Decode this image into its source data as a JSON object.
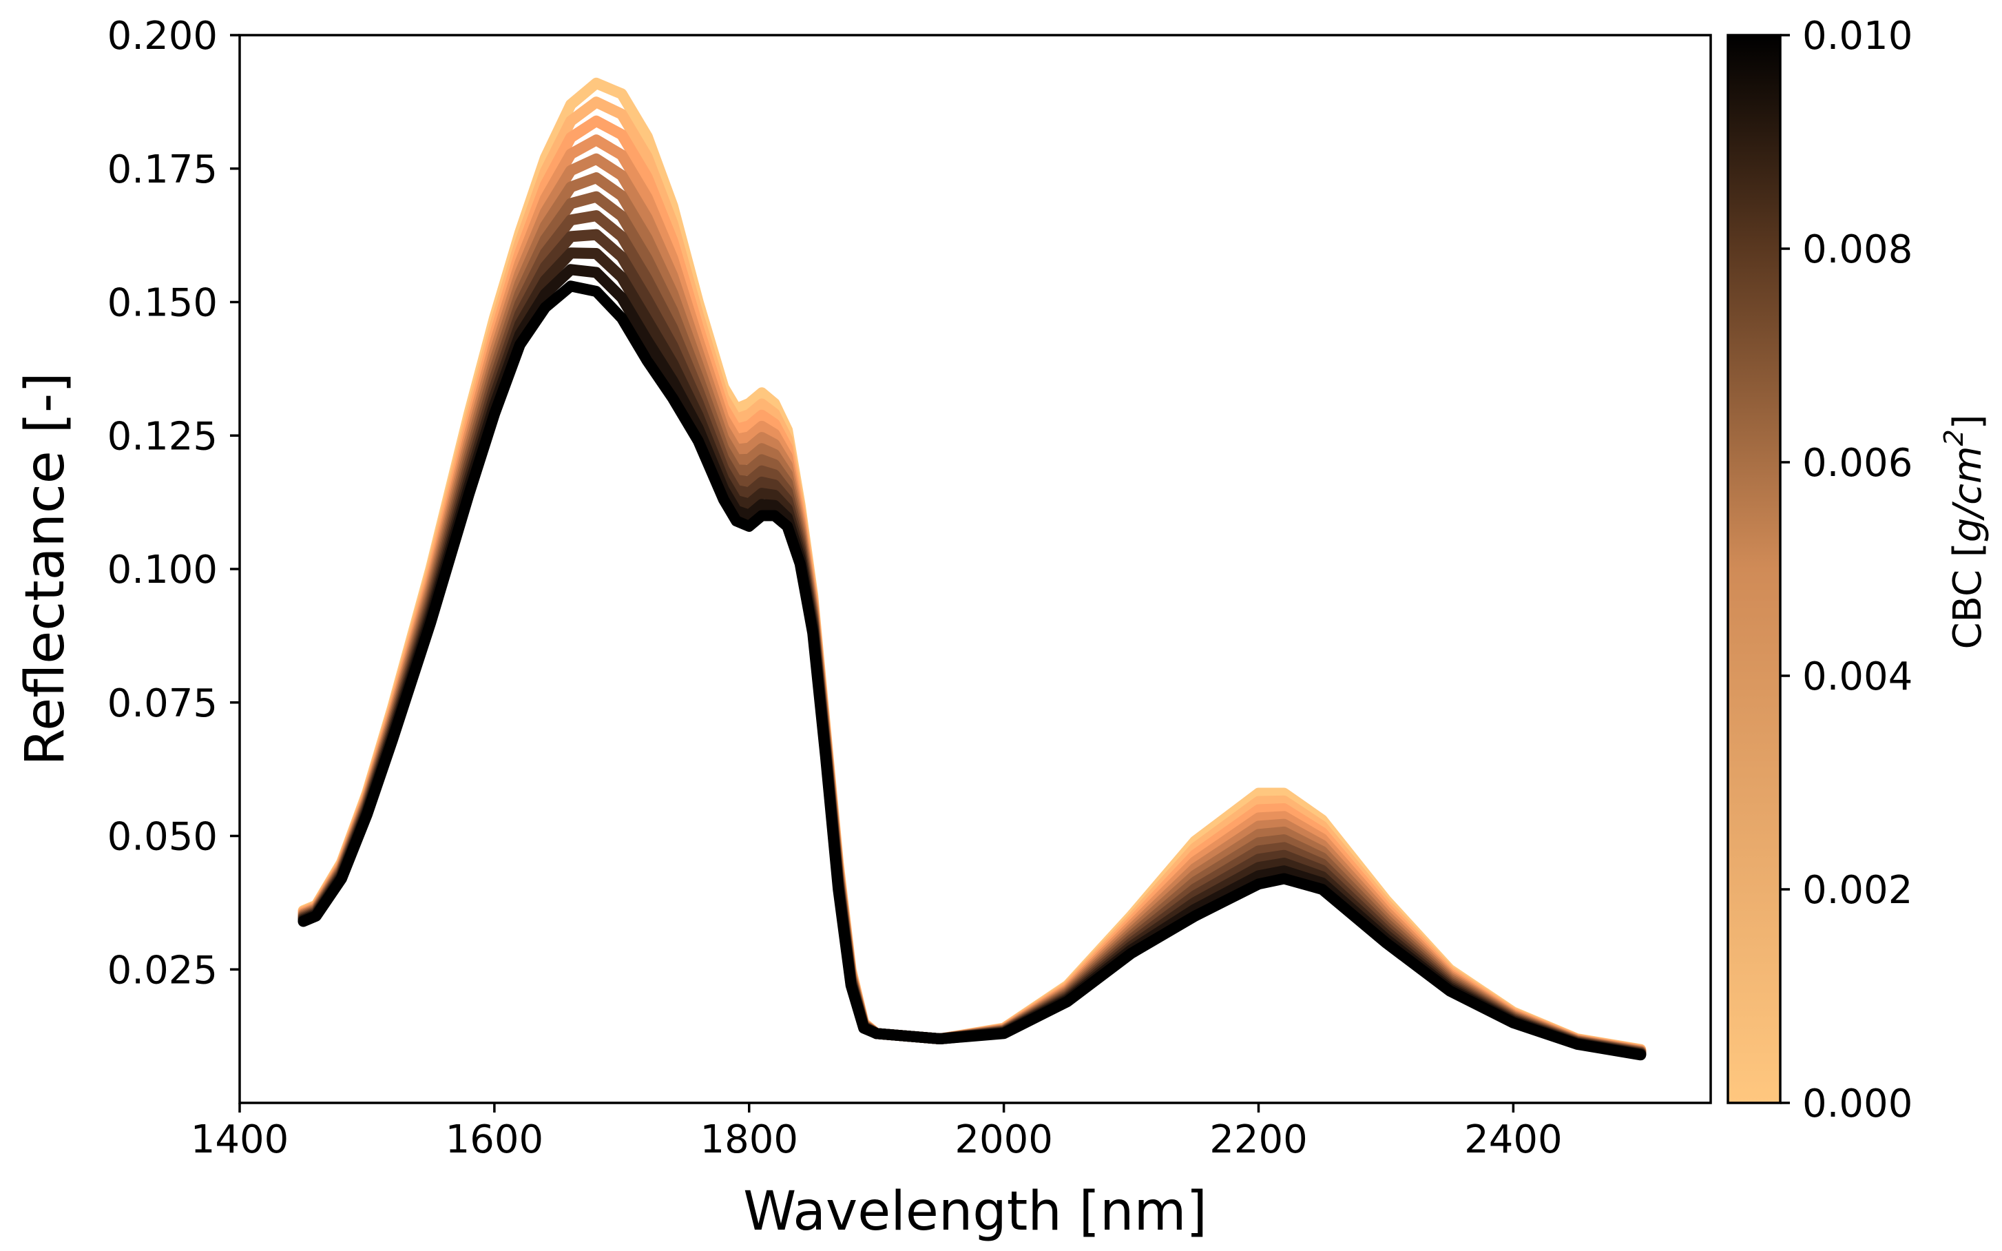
{
  "chart_data": {
    "type": "line",
    "title": "",
    "xlabel": "Wavelength [nm]",
    "ylabel": "Reflectance [-]",
    "xlim": [
      1400,
      2555
    ],
    "ylim": [
      0.0,
      0.2
    ],
    "x_ticks": [
      1400,
      1600,
      1800,
      2000,
      2200,
      2400
    ],
    "x_tick_labels": [
      "1400",
      "1600",
      "1800",
      "2000",
      "2200",
      "2400"
    ],
    "y_ticks": [
      0.025,
      0.05,
      0.075,
      0.1,
      0.125,
      0.15,
      0.175,
      0.2
    ],
    "y_tick_labels": [
      "0.025",
      "0.050",
      "0.075",
      "0.100",
      "0.125",
      "0.150",
      "0.175",
      "0.200"
    ],
    "grid": false,
    "legend": "none",
    "colorbar": {
      "label_text": "CBC [",
      "label_unit_base": "g/cm",
      "label_unit_exp": "2",
      "label_close": "]",
      "range": [
        0.0,
        0.01
      ],
      "ticks": [
        0.0,
        0.002,
        0.004,
        0.006,
        0.008,
        0.01
      ],
      "tick_labels": [
        "0.000",
        "0.002",
        "0.004",
        "0.006",
        "0.008",
        "0.010"
      ],
      "colormap": "copper_r",
      "color_low": "#ffc77f",
      "color_high": "#000000"
    },
    "series_count": 12,
    "series_note": "Reflectance spectra for CBC from 0.000 to 0.010 g/cm2; higher CBC gives lower reflectance",
    "x": [
      1450,
      1460,
      1480,
      1500,
      1520,
      1550,
      1580,
      1600,
      1620,
      1640,
      1660,
      1680,
      1700,
      1720,
      1740,
      1760,
      1780,
      1790,
      1800,
      1810,
      1820,
      1830,
      1840,
      1850,
      1860,
      1870,
      1880,
      1890,
      1900,
      1950,
      2000,
      2050,
      2100,
      2150,
      2200,
      2220,
      2250,
      2300,
      2350,
      2400,
      2450,
      2500
    ],
    "series": [
      {
        "name": "CBC 0.000",
        "values": [
          0.036,
          0.037,
          0.045,
          0.058,
          0.074,
          0.1,
          0.129,
          0.147,
          0.163,
          0.177,
          0.187,
          0.191,
          0.189,
          0.181,
          0.168,
          0.15,
          0.134,
          0.13,
          0.131,
          0.133,
          0.131,
          0.126,
          0.112,
          0.095,
          0.07,
          0.045,
          0.025,
          0.015,
          0.013,
          0.012,
          0.014,
          0.022,
          0.035,
          0.049,
          0.058,
          0.058,
          0.053,
          0.038,
          0.025,
          0.017,
          0.012,
          0.01
        ]
      },
      {
        "name": "CBC 0.010",
        "values": [
          0.034,
          0.035,
          0.042,
          0.054,
          0.068,
          0.09,
          0.114,
          0.129,
          0.142,
          0.149,
          0.153,
          0.152,
          0.147,
          0.139,
          0.132,
          0.124,
          0.113,
          0.109,
          0.108,
          0.11,
          0.11,
          0.108,
          0.101,
          0.088,
          0.065,
          0.04,
          0.022,
          0.014,
          0.013,
          0.012,
          0.013,
          0.019,
          0.028,
          0.035,
          0.041,
          0.042,
          0.04,
          0.03,
          0.021,
          0.015,
          0.011,
          0.009
        ]
      }
    ]
  }
}
